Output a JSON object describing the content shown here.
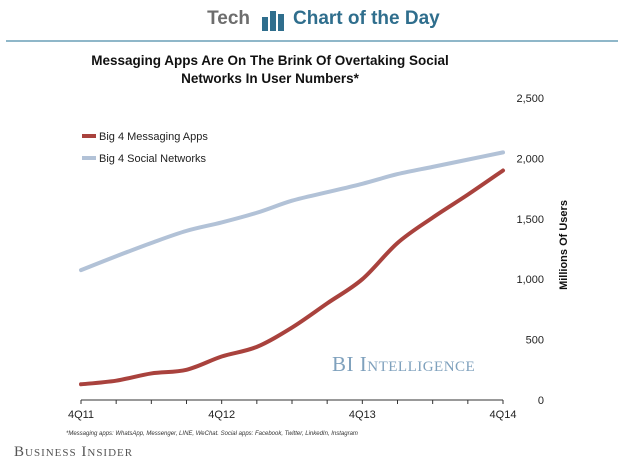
{
  "header": {
    "tech_label": "Tech",
    "cotd_label": "Chart of the Day",
    "accent_color": "#2f6e8d"
  },
  "brand": "Business Insider",
  "watermark": "BI Intelligence",
  "footnote": "*Messaging apps: WhatsApp, Messenger, LINE, WeChat. Social apps: Facebook, Twitter, LinkedIn, Instagram",
  "chart_data": {
    "type": "line",
    "title": "Messaging Apps Are On The Brink Of Overtaking Social Networks In User Numbers*",
    "xlabel": "",
    "ylabel": "Millions Of Users",
    "ylim": [
      0,
      2500
    ],
    "y_axis_side": "right",
    "yticks": [
      0,
      500,
      1000,
      1500,
      2000,
      2500
    ],
    "ytick_labels": [
      "0",
      "500",
      "1,000",
      "1,500",
      "2,000",
      "2,500"
    ],
    "xticks": [
      "4Q11",
      "4Q12",
      "4Q13",
      "4Q14"
    ],
    "x": [
      "4Q11",
      "1Q12",
      "2Q12",
      "3Q12",
      "4Q12",
      "1Q13",
      "2Q13",
      "3Q13",
      "4Q13",
      "1Q14",
      "2Q14",
      "3Q14",
      "4Q14"
    ],
    "grid": false,
    "legend_position": "top-left",
    "series": [
      {
        "name": "Big 4 Messaging Apps",
        "color": "#a9423d",
        "values": [
          130,
          160,
          220,
          250,
          360,
          440,
          600,
          800,
          1000,
          1300,
          1510,
          1700,
          1900
        ]
      },
      {
        "name": "Big 4 Social Networks",
        "color": "#b2c2d7",
        "values": [
          1075,
          1190,
          1300,
          1400,
          1470,
          1550,
          1650,
          1720,
          1790,
          1870,
          1930,
          1990,
          2050
        ]
      }
    ]
  }
}
